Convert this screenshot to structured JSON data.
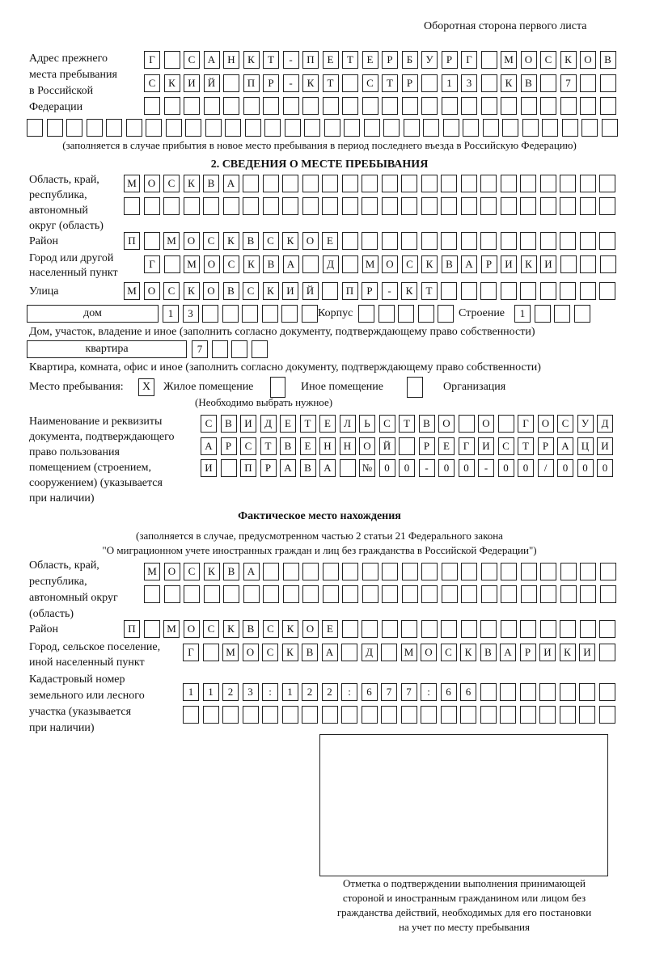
{
  "header": "Оборотная сторона первого листа",
  "prev_address": {
    "label": [
      "Адрес прежнего",
      "места пребывания",
      "в Российской",
      "Федерации"
    ],
    "rows": [
      [
        "Г",
        "",
        "С",
        "А",
        "Н",
        "К",
        "Т",
        "-",
        "П",
        "Е",
        "Т",
        "Е",
        "Р",
        "Б",
        "У",
        "Р",
        "Г",
        "",
        "М",
        "О",
        "С",
        "К",
        "О",
        "В"
      ],
      [
        "С",
        "К",
        "И",
        "Й",
        "",
        "П",
        "Р",
        "-",
        "К",
        "Т",
        "",
        "С",
        "Т",
        "Р",
        "",
        "1",
        "3",
        "",
        "К",
        "В",
        "",
        "7",
        "",
        ""
      ],
      [
        "",
        "",
        "",
        "",
        "",
        "",
        "",
        "",
        "",
        "",
        "",
        "",
        "",
        "",
        "",
        "",
        "",
        "",
        "",
        "",
        "",
        "",
        "",
        ""
      ],
      [
        "",
        "",
        "",
        "",
        "",
        "",
        "",
        "",
        "",
        "",
        "",
        "",
        "",
        "",
        "",
        "",
        "",
        "",
        "",
        "",
        "",
        "",
        "",
        "",
        "",
        "",
        "",
        "",
        "",
        ""
      ]
    ],
    "note": "(заполняется в случае прибытия в новое место пребывания в период последнего въезда в Российскую Федерацию)"
  },
  "section2": {
    "title": "2. СВЕДЕНИЯ О МЕСТЕ ПРЕБЫВАНИЯ",
    "region_label": [
      "Область, край,",
      "республика,",
      "автономный",
      "округ (область)"
    ],
    "region_rows": [
      [
        "М",
        "О",
        "С",
        "К",
        "В",
        "А",
        "",
        "",
        "",
        "",
        "",
        "",
        "",
        "",
        "",
        "",
        "",
        "",
        "",
        "",
        "",
        "",
        "",
        "",
        ""
      ],
      [
        "",
        "",
        "",
        "",
        "",
        "",
        "",
        "",
        "",
        "",
        "",
        "",
        "",
        "",
        "",
        "",
        "",
        "",
        "",
        "",
        "",
        "",
        "",
        "",
        ""
      ]
    ],
    "district_label": "Район",
    "district_row": [
      "П",
      "",
      "М",
      "О",
      "С",
      "К",
      "В",
      "С",
      "К",
      "О",
      "Е",
      "",
      "",
      "",
      "",
      "",
      "",
      "",
      "",
      "",
      "",
      "",
      "",
      "",
      ""
    ],
    "city_label": [
      "Город или другой",
      "населенный пункт"
    ],
    "city_row": [
      "Г",
      "",
      "М",
      "О",
      "С",
      "К",
      "В",
      "А",
      "",
      "Д",
      "",
      "М",
      "О",
      "С",
      "К",
      "В",
      "А",
      "Р",
      "И",
      "К",
      "И",
      "",
      "",
      ""
    ],
    "street_label": "Улица",
    "street_row": [
      "М",
      "О",
      "С",
      "К",
      "О",
      "В",
      "С",
      "К",
      "И",
      "Й",
      "",
      "П",
      "Р",
      "-",
      "К",
      "Т",
      "",
      "",
      "",
      "",
      "",
      "",
      "",
      "",
      ""
    ],
    "house_type": "дом",
    "house_cells": [
      "1",
      "3",
      "",
      "",
      "",
      "",
      "",
      ""
    ],
    "korpus_label": "Корпус",
    "korpus_cells": [
      "",
      "",
      "",
      "",
      ""
    ],
    "building_label": "Строение",
    "building_cells": [
      "1",
      "",
      "",
      ""
    ],
    "house_note": "Дом, участок, владение и иное (заполнить согласно документу, подтверждающему право собственности)",
    "flat_type": "квартира",
    "flat_cells": [
      "7",
      "",
      "",
      ""
    ],
    "flat_note": "Квартира, комната, офис и иное (заполнить согласно документу, подтверждающему право собственности)",
    "stay_place_label": "Место пребывания:",
    "stay_options": [
      {
        "label": "Жилое помещение",
        "mark": "X"
      },
      {
        "label": "Иное помещение",
        "mark": ""
      },
      {
        "label": "Организация",
        "mark": ""
      }
    ],
    "stay_note": "(Необходимо выбрать нужное)",
    "doc_label": [
      "Наименование и реквизиты",
      "документа, подтверждающего",
      "право пользования",
      "помещением (строением,",
      "сооружением) (указывается",
      "при наличии)"
    ],
    "doc_rows": [
      [
        "С",
        "В",
        "И",
        "Д",
        "Е",
        "Т",
        "Е",
        "Л",
        "Ь",
        "С",
        "Т",
        "В",
        "О",
        "",
        "О",
        "",
        "Г",
        "О",
        "С",
        "У",
        "Д"
      ],
      [
        "А",
        "Р",
        "С",
        "Т",
        "В",
        "Е",
        "Н",
        "Н",
        "О",
        "Й",
        "",
        "Р",
        "Е",
        "Г",
        "И",
        "С",
        "Т",
        "Р",
        "А",
        "Ц",
        "И"
      ],
      [
        "И",
        "",
        "П",
        "Р",
        "А",
        "В",
        "А",
        "",
        "№",
        "0",
        "0",
        "-",
        "0",
        "0",
        "-",
        "0",
        "0",
        "/",
        "0",
        "0",
        "0"
      ]
    ]
  },
  "actual": {
    "title": "Фактическое место нахождения",
    "note": [
      "(заполняется в случае, предусмотренном частью 2 статьи 21 Федерального закона",
      "\"О миграционном учете иностранных граждан и лиц без гражданства в Российской Федерации\")"
    ],
    "region_label": [
      "Область, край,",
      "республика,",
      "автономный округ",
      "(область)"
    ],
    "region_rows": [
      [
        "М",
        "О",
        "С",
        "К",
        "В",
        "А",
        "",
        "",
        "",
        "",
        "",
        "",
        "",
        "",
        "",
        "",
        "",
        "",
        "",
        "",
        "",
        "",
        "",
        ""
      ],
      [
        "",
        "",
        "",
        "",
        "",
        "",
        "",
        "",
        "",
        "",
        "",
        "",
        "",
        "",
        "",
        "",
        "",
        "",
        "",
        "",
        "",
        "",
        "",
        ""
      ]
    ],
    "district_label": "Район",
    "district_row": [
      "П",
      "",
      "М",
      "О",
      "С",
      "К",
      "В",
      "С",
      "К",
      "О",
      "Е",
      "",
      "",
      "",
      "",
      "",
      "",
      "",
      "",
      "",
      "",
      "",
      "",
      "",
      ""
    ],
    "city_label": [
      "Город, сельское поселение,",
      "иной населенный пункт"
    ],
    "city_row": [
      "Г",
      "",
      "М",
      "О",
      "С",
      "К",
      "В",
      "А",
      "",
      "Д",
      "",
      "М",
      "О",
      "С",
      "К",
      "В",
      "А",
      "Р",
      "И",
      "К",
      "И",
      ""
    ],
    "cadastral_label": [
      "Кадастровый номер",
      "земельного или лесного",
      "участка (указывается",
      "при наличии)"
    ],
    "cadastral_rows": [
      [
        "1",
        "1",
        "2",
        "3",
        ":",
        "1",
        "2",
        "2",
        ":",
        "6",
        "7",
        "7",
        ":",
        "6",
        "6",
        "",
        "",
        "",
        "",
        "",
        "",
        ""
      ],
      [
        "",
        "",
        "",
        "",
        "",
        "",
        "",
        "",
        "",
        "",
        "",
        "",
        "",
        "",
        "",
        "",
        "",
        "",
        "",
        "",
        "",
        ""
      ]
    ]
  },
  "stamp_caption": [
    "Отметка о подтверждении выполнения принимающей",
    "стороной и иностранным гражданином или лицом без",
    "гражданства действий, необходимых для его постановки",
    "на учет по месту пребывания"
  ]
}
